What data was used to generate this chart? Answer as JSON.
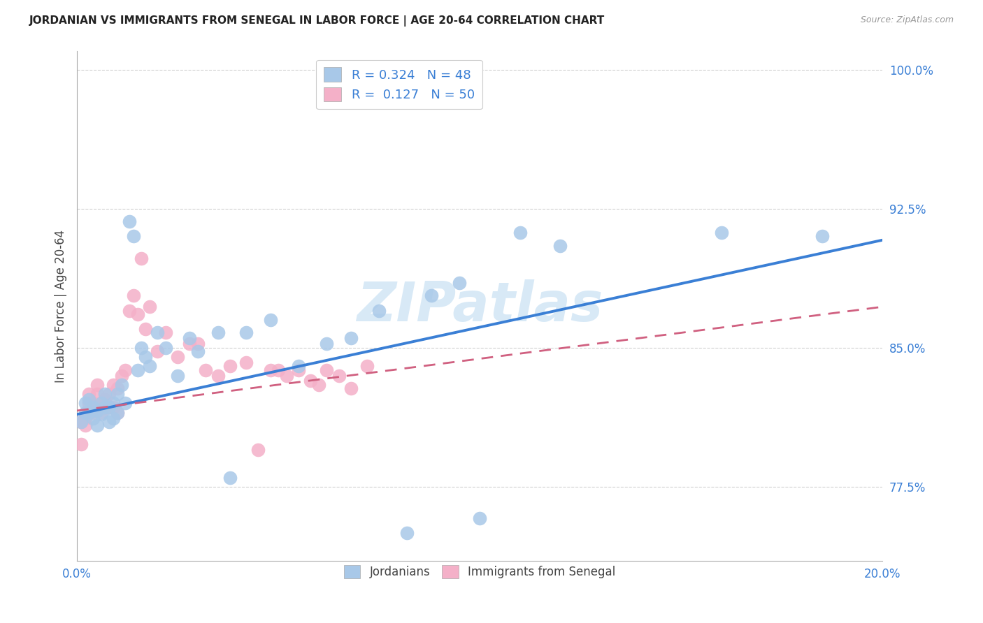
{
  "title": "JORDANIAN VS IMMIGRANTS FROM SENEGAL IN LABOR FORCE | AGE 20-64 CORRELATION CHART",
  "source": "Source: ZipAtlas.com",
  "ylabel": "In Labor Force | Age 20-64",
  "xlim": [
    0.0,
    0.2
  ],
  "ylim": [
    0.735,
    1.01
  ],
  "xticks": [
    0.0,
    0.05,
    0.1,
    0.15,
    0.2
  ],
  "xtick_labels": [
    "0.0%",
    "",
    "",
    "",
    "20.0%"
  ],
  "yticks": [
    0.775,
    0.85,
    0.925,
    1.0
  ],
  "ytick_labels": [
    "77.5%",
    "85.0%",
    "92.5%",
    "100.0%"
  ],
  "blue_color": "#a8c8e8",
  "pink_color": "#f4b0c8",
  "blue_line_color": "#3a7fd5",
  "pink_line_color": "#d06080",
  "watermark": "ZIPatlas",
  "jordanians_x": [
    0.001,
    0.002,
    0.002,
    0.003,
    0.003,
    0.004,
    0.004,
    0.005,
    0.005,
    0.006,
    0.006,
    0.007,
    0.007,
    0.008,
    0.008,
    0.009,
    0.009,
    0.01,
    0.01,
    0.011,
    0.012,
    0.013,
    0.014,
    0.015,
    0.016,
    0.017,
    0.018,
    0.02,
    0.022,
    0.025,
    0.028,
    0.03,
    0.035,
    0.038,
    0.042,
    0.048,
    0.055,
    0.062,
    0.068,
    0.075,
    0.082,
    0.088,
    0.095,
    0.1,
    0.11,
    0.12,
    0.16,
    0.185
  ],
  "jordanians_y": [
    0.81,
    0.815,
    0.82,
    0.815,
    0.822,
    0.818,
    0.812,
    0.808,
    0.816,
    0.814,
    0.82,
    0.818,
    0.825,
    0.81,
    0.818,
    0.812,
    0.82,
    0.815,
    0.825,
    0.83,
    0.82,
    0.918,
    0.91,
    0.838,
    0.85,
    0.845,
    0.84,
    0.858,
    0.85,
    0.835,
    0.855,
    0.848,
    0.858,
    0.78,
    0.858,
    0.865,
    0.84,
    0.852,
    0.855,
    0.87,
    0.75,
    0.878,
    0.885,
    0.758,
    0.912,
    0.905,
    0.912,
    0.91
  ],
  "senegal_x": [
    0.001,
    0.001,
    0.002,
    0.002,
    0.003,
    0.003,
    0.003,
    0.004,
    0.004,
    0.005,
    0.005,
    0.005,
    0.006,
    0.006,
    0.007,
    0.007,
    0.008,
    0.008,
    0.009,
    0.009,
    0.01,
    0.01,
    0.011,
    0.012,
    0.013,
    0.014,
    0.015,
    0.016,
    0.017,
    0.018,
    0.02,
    0.022,
    0.025,
    0.028,
    0.03,
    0.032,
    0.035,
    0.038,
    0.042,
    0.045,
    0.048,
    0.05,
    0.052,
    0.055,
    0.058,
    0.06,
    0.062,
    0.065,
    0.068,
    0.072
  ],
  "senegal_y": [
    0.798,
    0.81,
    0.812,
    0.808,
    0.815,
    0.82,
    0.825,
    0.815,
    0.82,
    0.818,
    0.825,
    0.83,
    0.815,
    0.82,
    0.818,
    0.822,
    0.818,
    0.825,
    0.818,
    0.83,
    0.815,
    0.828,
    0.835,
    0.838,
    0.87,
    0.878,
    0.868,
    0.898,
    0.86,
    0.872,
    0.848,
    0.858,
    0.845,
    0.852,
    0.852,
    0.838,
    0.835,
    0.84,
    0.842,
    0.795,
    0.838,
    0.838,
    0.835,
    0.838,
    0.832,
    0.83,
    0.838,
    0.835,
    0.828,
    0.84
  ],
  "blue_intercept": 0.814,
  "blue_slope": 0.47,
  "pink_intercept": 0.816,
  "pink_slope": 0.28
}
